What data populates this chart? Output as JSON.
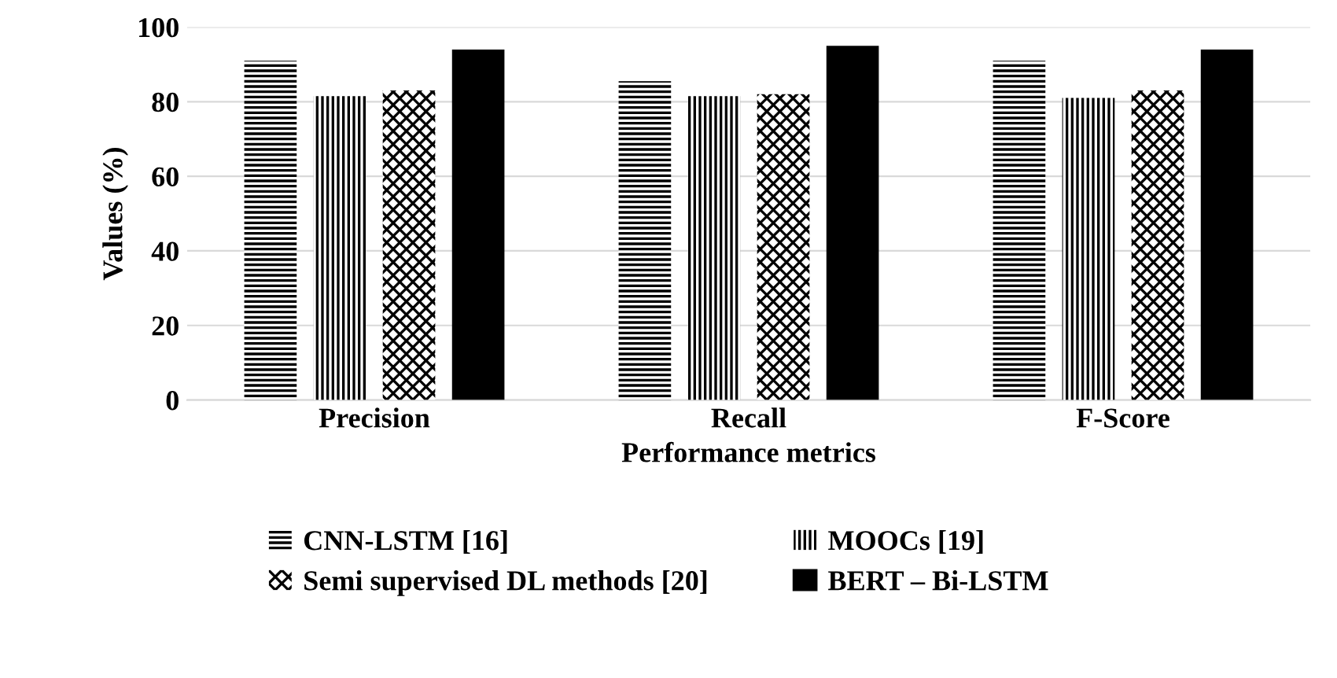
{
  "chart_data": {
    "type": "bar",
    "xlabel": "Performance metrics",
    "ylabel": "Values (%)",
    "categories": [
      "Precision",
      "Recall",
      "F-Score"
    ],
    "series": [
      {
        "name": "CNN-LSTM [16]",
        "color": "#000000",
        "values": [
          91,
          85.5,
          91
        ]
      },
      {
        "name": "MOOCs [19]",
        "color": "#000000",
        "values": [
          81.5,
          81.5,
          81
        ]
      },
      {
        "name": "Semi supervised DL methods [20]",
        "color": "#000000",
        "values": [
          83,
          82,
          83
        ]
      },
      {
        "name": "BERT – Bi-LSTM",
        "color": "#000000",
        "values": [
          94,
          95,
          94
        ]
      }
    ],
    "ylim": [
      0,
      100
    ],
    "yticks": [
      0,
      20,
      40,
      60,
      80,
      100
    ],
    "grid": "y",
    "legend": "bottom"
  }
}
